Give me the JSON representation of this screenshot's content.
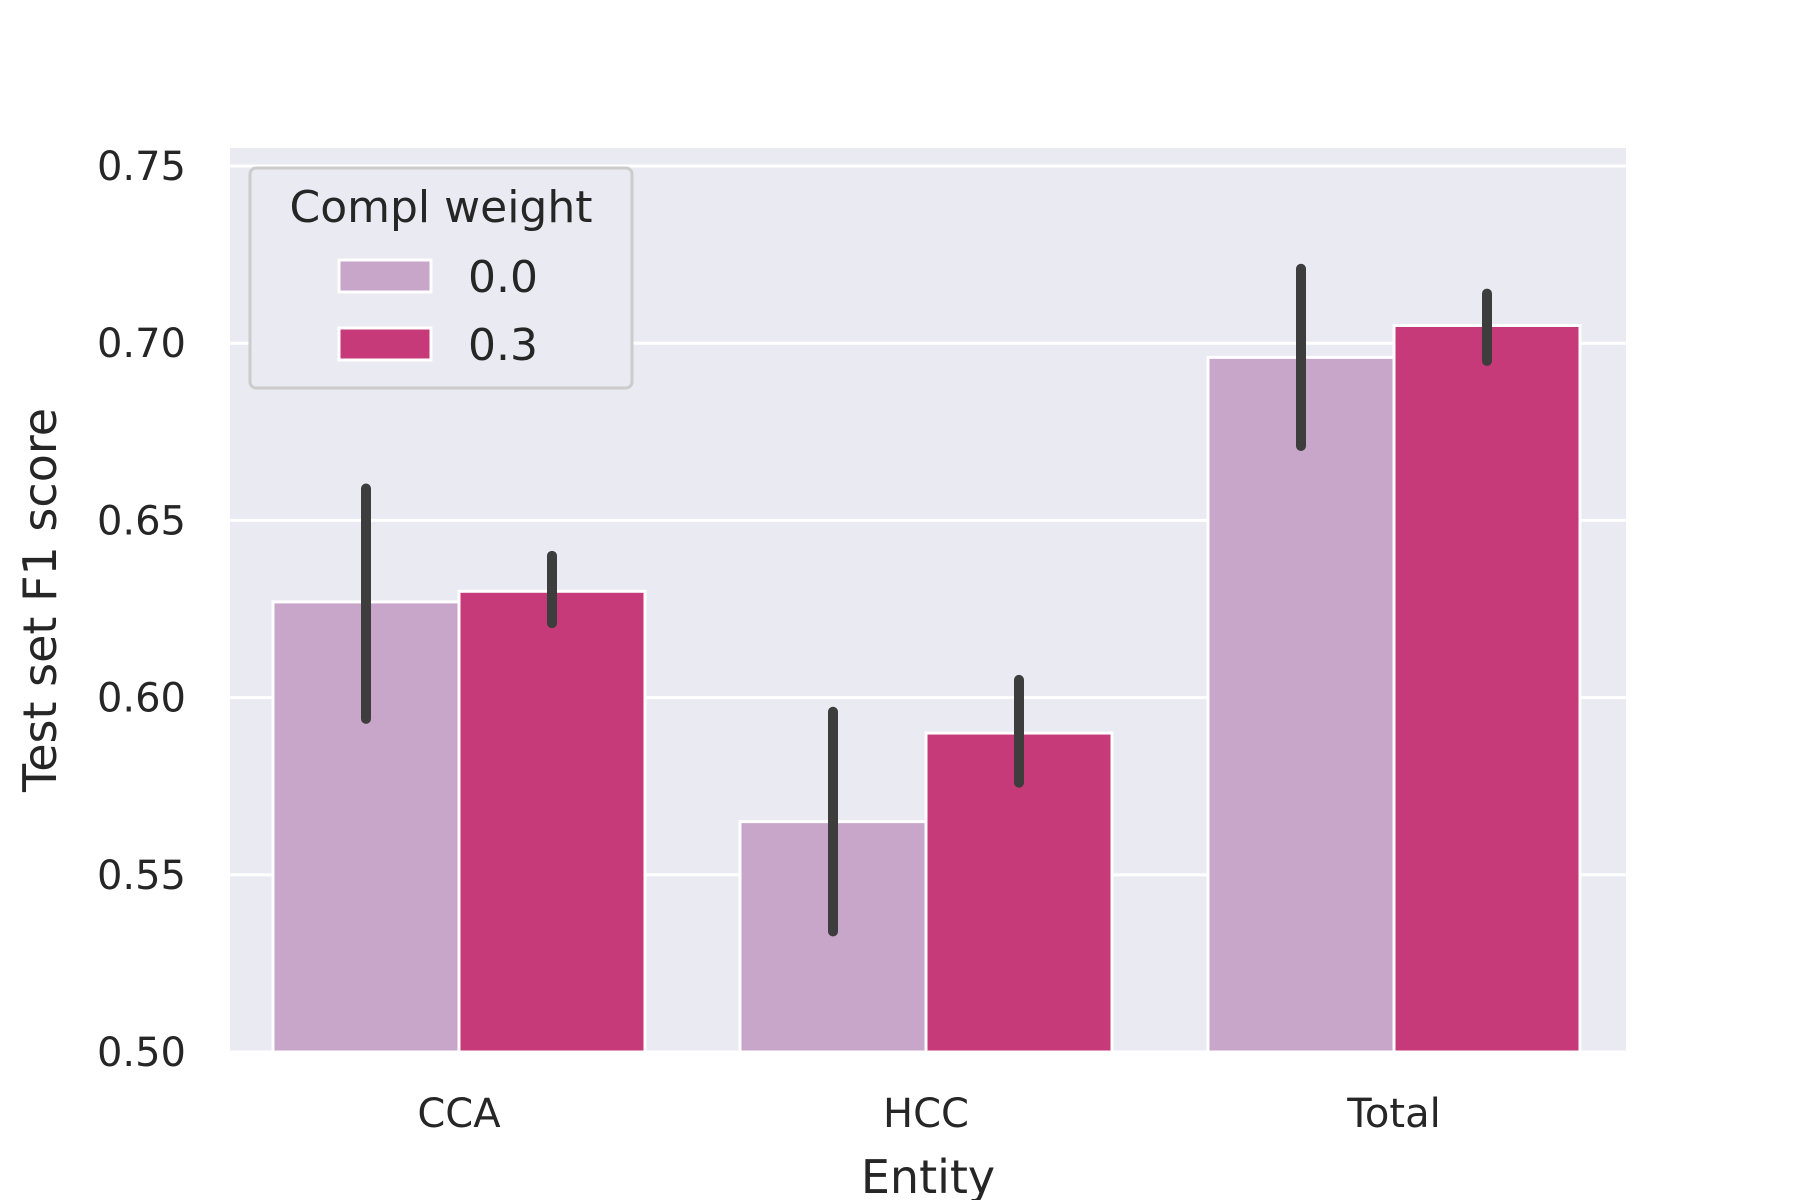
{
  "chart_data": {
    "type": "bar",
    "title": "",
    "xlabel": "Entity",
    "ylabel": "Test set F1 score",
    "categories": [
      "CCA",
      "HCC",
      "Total"
    ],
    "ylim": [
      0.5,
      0.755
    ],
    "yticks": [
      "0.50",
      "0.55",
      "0.60",
      "0.65",
      "0.70",
      "0.75"
    ],
    "grid": true,
    "legend": {
      "title": "Compl weight",
      "position": "top-left"
    },
    "series": [
      {
        "name": "0.0",
        "color": "#c8a6c9",
        "values": [
          0.627,
          0.565,
          0.696
        ],
        "err_low": [
          0.594,
          0.534,
          0.671
        ],
        "err_high": [
          0.659,
          0.596,
          0.721
        ]
      },
      {
        "name": "0.3",
        "color": "#c73a7a",
        "values": [
          0.63,
          0.59,
          0.705
        ],
        "err_low": [
          0.621,
          0.576,
          0.695
        ],
        "err_high": [
          0.64,
          0.605,
          0.714
        ]
      }
    ],
    "colors": {
      "plot_bg": "#eaeaf2",
      "grid": "#ffffff",
      "errbar": "#3d3d3d"
    }
  }
}
